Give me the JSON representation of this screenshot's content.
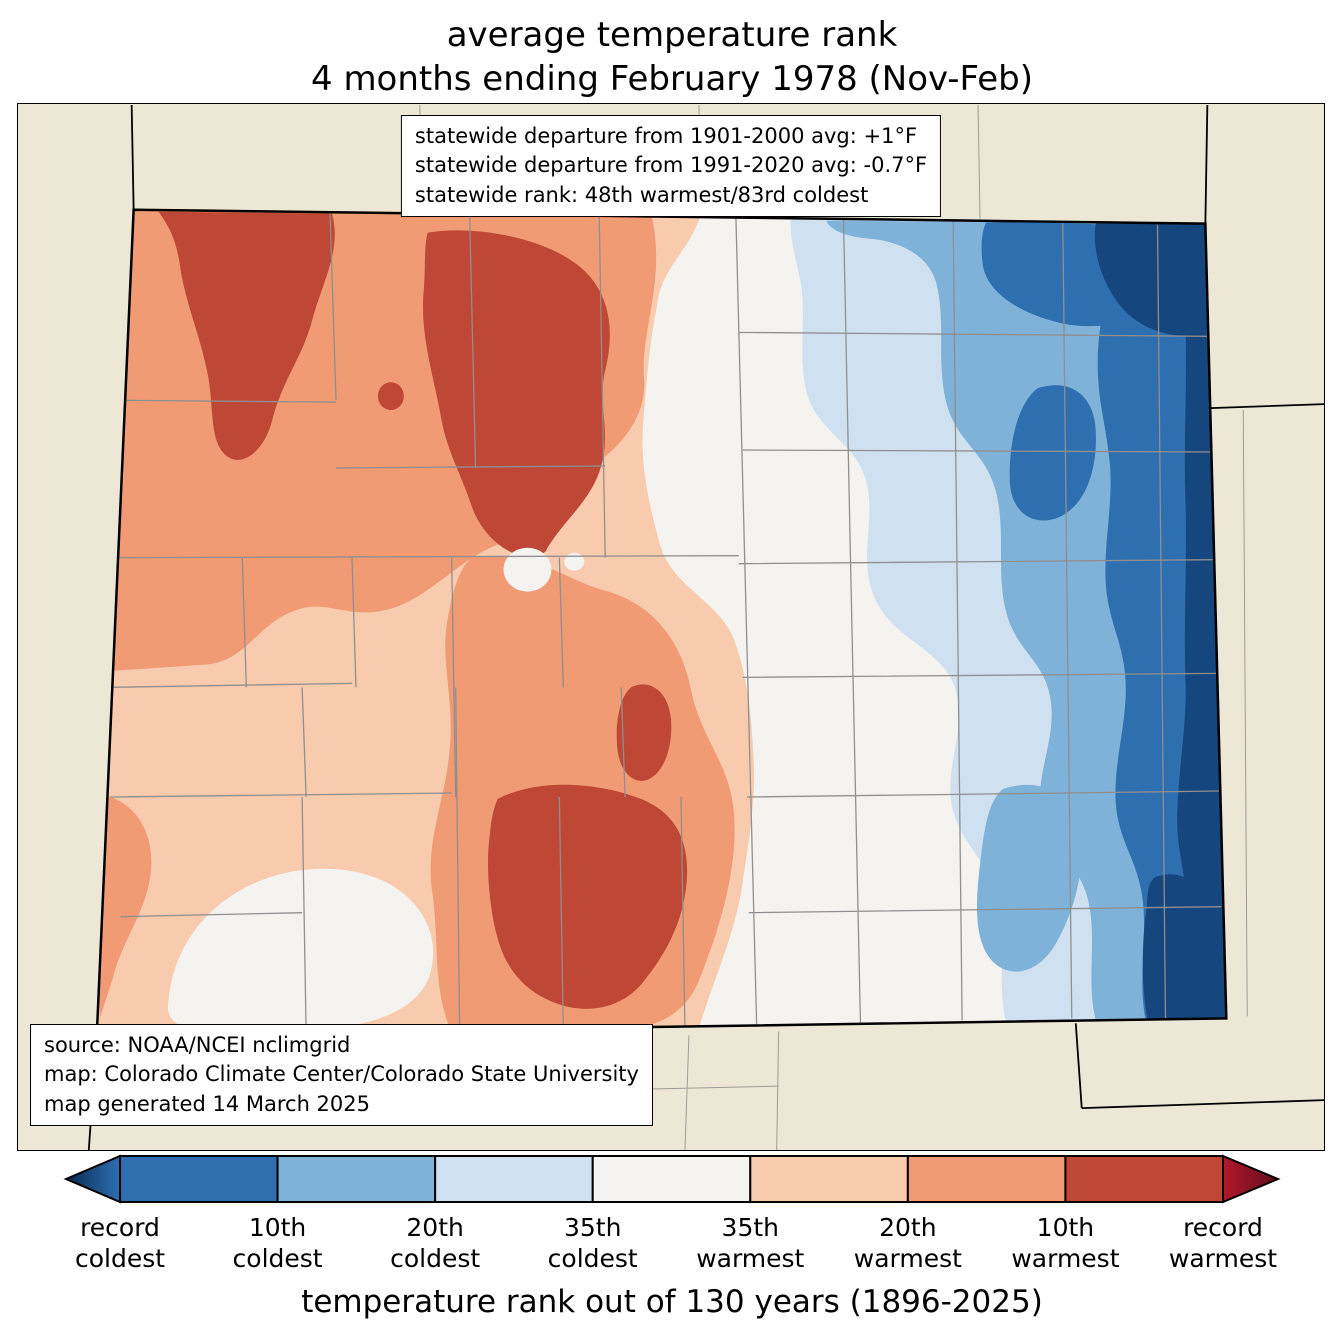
{
  "title": {
    "line1": "average temperature rank",
    "line2": "4 months ending February 1978 (Nov-Feb)"
  },
  "stats_box": {
    "line1": "statewide departure from 1901-2000 avg: +1°F",
    "line2": "statewide departure from 1991-2020 avg: -0.7°F",
    "line3": "statewide rank: 48th warmest/83rd coldest"
  },
  "source_box": {
    "line1": "source: NOAA/NCEI nclimgrid",
    "line2": "map: Colorado Climate Center/Colorado State University",
    "line3": "map generated 14 March 2025"
  },
  "colorbar": {
    "axis_label": "temperature rank out of 130 years (1896-2025)",
    "labels": [
      "record\ncoldest",
      "10th\ncoldest",
      "20th\ncoldest",
      "35th\ncoldest",
      "35th\nwarmest",
      "20th\nwarmest",
      "10th\nwarmest",
      "record\nwarmest"
    ],
    "segment_colors": [
      "#2e6fb0",
      "#7fb2d8",
      "#cfe1f0",
      "#f4f3f0",
      "#f8cbae",
      "#f09b74",
      "#bf4735"
    ],
    "arrow_left": {
      "tip": "#062a52",
      "base": "#2e6fb0"
    },
    "arrow_right": {
      "base": "#b2182b",
      "tip": "#600c1d"
    }
  },
  "map": {
    "palette": {
      "background": "#ece8d5",
      "state_border": "#000000",
      "county_line": "#8f8f8f",
      "neighbor_county_line": "#9c9c9c",
      "neutral": "#f4f3f0",
      "cold_35": "#cfe1f0",
      "cold_20": "#7fb2d8",
      "cold_10": "#2e6fb0",
      "cold_record": "#16467e",
      "warm_35": "#f8cbae",
      "warm_20": "#f09b74",
      "warm_10": "#bf4735"
    }
  }
}
